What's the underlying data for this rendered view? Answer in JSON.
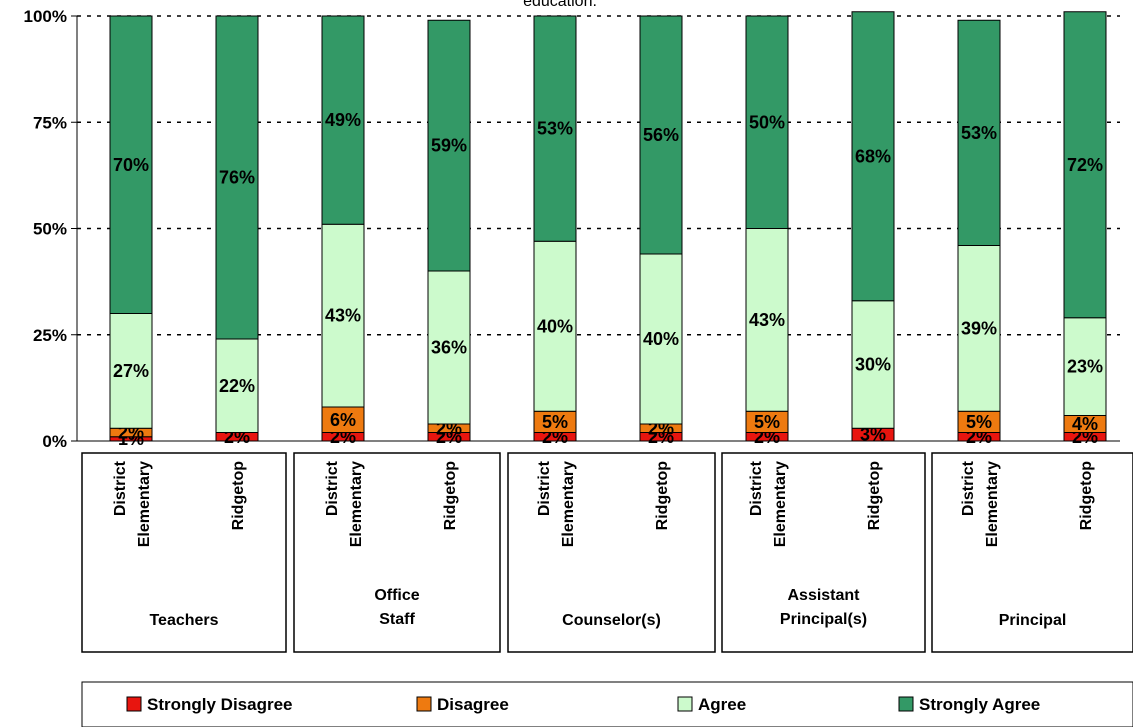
{
  "chart_data": {
    "type": "bar",
    "stacked": true,
    "title": "education.",
    "y_ticks": [
      "0%",
      "25%",
      "50%",
      "75%",
      "100%"
    ],
    "ylim": [
      0,
      100
    ],
    "grid": "horizontal-dotted",
    "legend_position": "bottom",
    "colors": {
      "Strongly Disagree": "#e8150f",
      "Disagree": "#ee7a10",
      "Agree": "#ccfacc",
      "Strongly Agree": "#339966"
    },
    "groups": [
      {
        "label": "Teachers",
        "categories": [
          "District Elementary",
          "Ridgetop"
        ]
      },
      {
        "label": "Office Staff",
        "categories": [
          "District Elementary",
          "Ridgetop"
        ]
      },
      {
        "label": "Counselor(s)",
        "categories": [
          "District Elementary",
          "Ridgetop"
        ]
      },
      {
        "label": "Assistant Principal(s)",
        "categories": [
          "District Elementary",
          "Ridgetop"
        ]
      },
      {
        "label": "Principal",
        "categories": [
          "District Elementary",
          "Ridgetop"
        ]
      }
    ],
    "series": [
      {
        "name": "Strongly Disagree",
        "values": [
          1,
          2,
          2,
          2,
          2,
          2,
          2,
          3,
          2,
          2
        ],
        "labels": [
          "1%",
          "2%",
          "2%",
          "2%",
          "2%",
          "2%",
          "2%",
          "3%",
          "2%",
          "2%"
        ]
      },
      {
        "name": "Disagree",
        "values": [
          2,
          0,
          6,
          2,
          5,
          2,
          5,
          0,
          5,
          4
        ],
        "labels": [
          "2%",
          "",
          "6%",
          "2%",
          "5%",
          "2%",
          "5%",
          "",
          "5%",
          "4%"
        ]
      },
      {
        "name": "Agree",
        "values": [
          27,
          22,
          43,
          36,
          40,
          40,
          43,
          30,
          39,
          23
        ],
        "labels": [
          "27%",
          "22%",
          "43%",
          "36%",
          "40%",
          "40%",
          "43%",
          "30%",
          "39%",
          "23%"
        ]
      },
      {
        "name": "Strongly Agree",
        "values": [
          70,
          76,
          49,
          59,
          53,
          56,
          50,
          68,
          53,
          72
        ],
        "labels": [
          "70%",
          "76%",
          "49%",
          "59%",
          "53%",
          "56%",
          "50%",
          "68%",
          "53%",
          "72%"
        ]
      }
    ]
  }
}
